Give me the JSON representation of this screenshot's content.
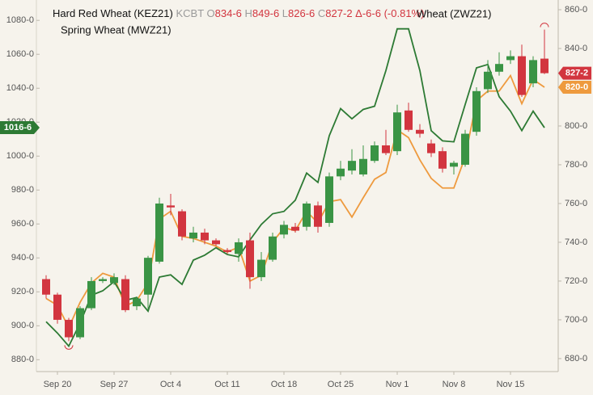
{
  "chart_data": {
    "type": "candlestick",
    "header": {
      "series_name": "Hard Red Wheat (KEZ21)",
      "exchange": "KCBT",
      "ohlc": [
        {
          "key": "O",
          "value": "834-6"
        },
        {
          "key": "H",
          "value": "849-6"
        },
        {
          "key": "L",
          "value": "826-6"
        },
        {
          "key": "C",
          "value": "827-2"
        }
      ],
      "change": "Δ-6-6 (-0.81%)"
    },
    "categories": [
      null,
      "Sep 20",
      null,
      null,
      null,
      null,
      "Sep 27",
      null,
      null,
      null,
      null,
      "Oct 4",
      null,
      null,
      null,
      null,
      "Oct 11",
      null,
      null,
      null,
      null,
      "Oct 18",
      null,
      null,
      null,
      null,
      "Oct 25",
      null,
      null,
      null,
      null,
      "Nov 1",
      null,
      null,
      null,
      null,
      "Nov 8",
      null,
      null,
      null,
      null,
      "Nov 15",
      null,
      null,
      null
    ],
    "candles": {
      "name": "Hard Red Wheat (KEZ21)",
      "axis": "y2",
      "up_color": "#3a9445",
      "down_color": "#d2353f",
      "open": [
        721,
        713,
        700,
        691,
        706,
        720,
        719,
        721,
        707,
        713,
        730,
        759,
        756,
        742,
        745,
        741,
        736,
        734,
        741,
        722,
        731,
        744,
        748,
        748,
        759,
        750,
        774,
        777,
        775,
        782,
        790,
        787,
        808,
        798,
        791,
        787,
        779,
        780,
        797,
        819,
        828,
        834,
        836,
        822,
        834.75
      ],
      "high": [
        723,
        714,
        701,
        707,
        722,
        722,
        724,
        723,
        712,
        733,
        763,
        765,
        757,
        748,
        747,
        742,
        737,
        742,
        745,
        735,
        745,
        751,
        750,
        761,
        761,
        776,
        782,
        788,
        790,
        792,
        798,
        811,
        812,
        801,
        793,
        789,
        782,
        798,
        820,
        834,
        838,
        839,
        842,
        836,
        849.75
      ],
      "low": [
        711,
        698,
        689,
        690,
        705,
        719,
        718,
        704,
        705,
        705,
        729,
        754,
        741,
        740,
        739,
        738,
        734,
        730,
        716,
        720,
        730,
        742,
        745,
        746,
        745,
        748,
        772,
        775,
        774,
        781,
        785,
        785,
        797,
        794,
        784,
        776,
        775,
        779,
        795,
        817,
        826,
        832,
        815,
        820,
        826.75
      ],
      "close": [
        713,
        700,
        691,
        706,
        720,
        721,
        722,
        705,
        711,
        732,
        760,
        758,
        743,
        745,
        741,
        739,
        735,
        740,
        722,
        731,
        743,
        749,
        746,
        760,
        748,
        774,
        778,
        782,
        783,
        790,
        786,
        807,
        798,
        796,
        786,
        778,
        781,
        796,
        818,
        828,
        832,
        836,
        816,
        834,
        827.25
      ],
      "close_label": "827-2"
    },
    "series": [
      {
        "name": "Wheat (ZWZ21)",
        "color": "#ee9a3e",
        "axis": "y2",
        "last_value_label": "820-0",
        "values": [
          711,
          707.5,
          696,
          709,
          719,
          724,
          722,
          707,
          710,
          719,
          752,
          756,
          743,
          742,
          740,
          738,
          735,
          737.5,
          720,
          723,
          740,
          747.5,
          746,
          756,
          750,
          761,
          762,
          753,
          763,
          772.5,
          776,
          798,
          794,
          782.5,
          773,
          768,
          768,
          784,
          813,
          818,
          818,
          826,
          811.5,
          824,
          820
        ]
      },
      {
        "name": "Spring Wheat (MWZ21)",
        "color": "#2d7a34",
        "last_value_label": "1016-6",
        "values": [
          902.4,
          895.7,
          888,
          901.5,
          918,
          920.6,
          926,
          915,
          916.7,
          908.6,
          928.7,
          930,
          924.4,
          938.7,
          941.6,
          946,
          942,
          940.6,
          950.6,
          959.7,
          966,
          967.4,
          974,
          990,
          984.5,
          1012,
          1028,
          1022,
          1027.5,
          1029.4,
          1050.4,
          1075,
          1075,
          1050.4,
          1015,
          1009,
          1008.4,
          1030.4,
          1052,
          1054,
          1035,
          1026.5,
          1015,
          1026.5,
          1016.75
        ]
      }
    ],
    "ylim": [
      873,
      1092
    ],
    "yticks": [
      {
        "value": 880,
        "label": "880-0"
      },
      {
        "value": 900,
        "label": "900-0"
      },
      {
        "value": 920,
        "label": "920-0"
      },
      {
        "value": 940,
        "label": "940-0"
      },
      {
        "value": 960,
        "label": "960-0"
      },
      {
        "value": 980,
        "label": "980-0"
      },
      {
        "value": 1000,
        "label": "1000-0"
      },
      {
        "value": 1020,
        "label": "1020-0"
      },
      {
        "value": 1040,
        "label": "1040-0"
      },
      {
        "value": 1060,
        "label": "1060-0"
      },
      {
        "value": 1080,
        "label": "1080-0"
      }
    ],
    "y2lim": [
      673.3,
      865
    ],
    "y2ticks": [
      {
        "value": 680,
        "label": "680-0"
      },
      {
        "value": 700,
        "label": "700-0"
      },
      {
        "value": 720,
        "label": "720-0"
      },
      {
        "value": 740,
        "label": "740-0"
      },
      {
        "value": 760,
        "label": "760-0"
      },
      {
        "value": 780,
        "label": "780-0"
      },
      {
        "value": 800,
        "label": "800-0"
      },
      {
        "value": 820,
        "label": "820-0"
      },
      {
        "value": 840,
        "label": "840-0"
      },
      {
        "value": 860,
        "label": "860-0"
      }
    ],
    "grid": false
  }
}
